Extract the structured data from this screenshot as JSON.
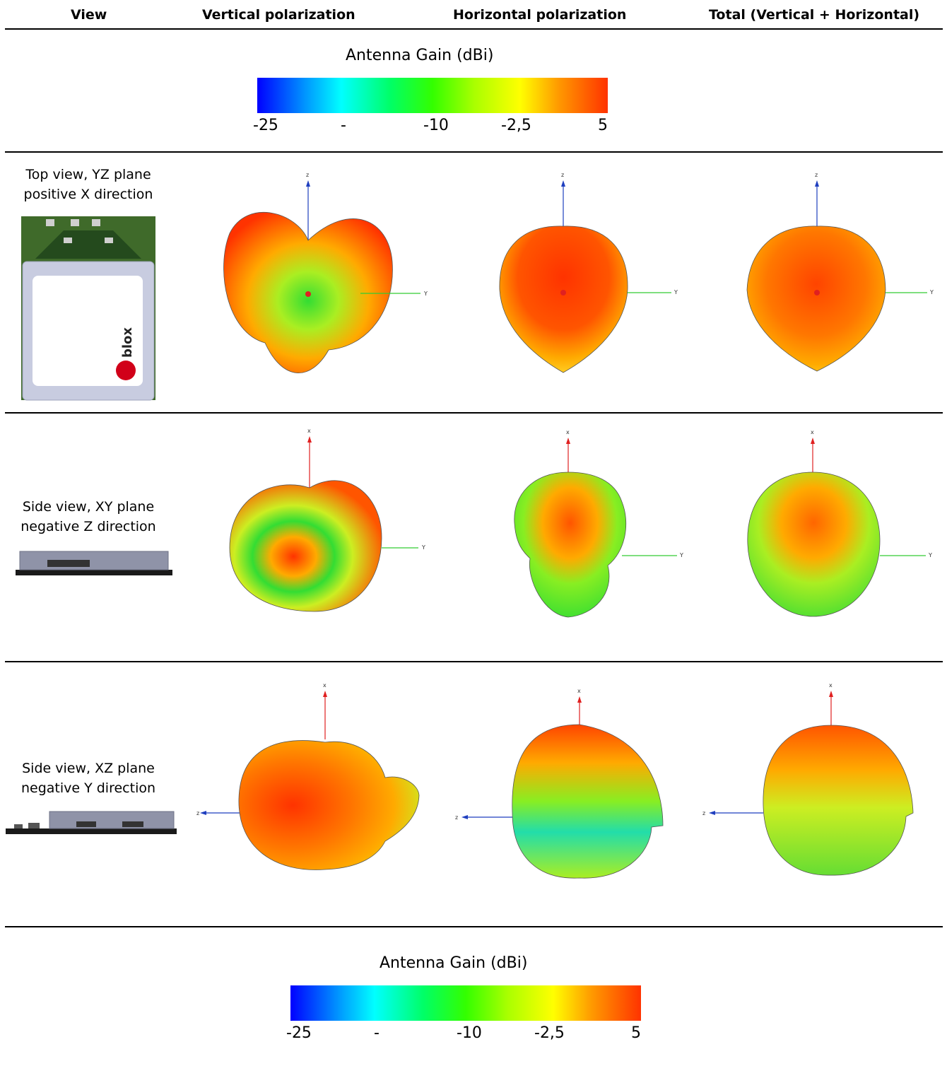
{
  "table": {
    "headers": [
      "View",
      "Vertical polarization",
      "Horizontal polarization",
      "Total (Vertical + Horizontal)"
    ],
    "rows": [
      {
        "view_line1": "Top view, YZ plane",
        "view_line2": "positive X direction",
        "up_axis": "z",
        "side_axis": "Y"
      },
      {
        "view_line1": "Side view, XY plane",
        "view_line2": "negative Z direction",
        "up_axis": "x",
        "side_axis": "Y"
      },
      {
        "view_line1": "Side view, XZ plane",
        "view_line2": "negative Y direction",
        "up_axis": "x",
        "side_axis": "z"
      }
    ]
  },
  "gain_scale": {
    "title": "Antenna Gain (dBi)",
    "ticks": [
      "-25",
      "-",
      "-10",
      "-2,5",
      "5"
    ],
    "colors": [
      "#0000ff",
      "#00ffff",
      "#33ff00",
      "#ffff00",
      "#ff3300"
    ]
  },
  "colors": {
    "z_axis": "#1f3fbf",
    "x_axis": "#e02020",
    "y_axis": "#33cc33",
    "logo": "#d10019"
  },
  "logo_text": "blox"
}
